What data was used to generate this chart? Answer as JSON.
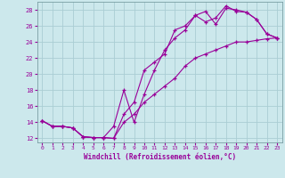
{
  "xlabel": "Windchill (Refroidissement éolien,°C)",
  "bg_color": "#cce8ec",
  "grid_color": "#aacdd4",
  "line_color": "#990099",
  "xlim": [
    -0.5,
    23.5
  ],
  "ylim": [
    11.5,
    29.0
  ],
  "xticks": [
    0,
    1,
    2,
    3,
    4,
    5,
    6,
    7,
    8,
    9,
    10,
    11,
    12,
    13,
    14,
    15,
    16,
    17,
    18,
    19,
    20,
    21,
    22,
    23
  ],
  "yticks": [
    12,
    14,
    16,
    18,
    20,
    22,
    24,
    26,
    28
  ],
  "line1_x": [
    0,
    1,
    2,
    3,
    4,
    5,
    6,
    7,
    8,
    9,
    10,
    11,
    12,
    13,
    14,
    15,
    16,
    17,
    18,
    19,
    20,
    21,
    22,
    23
  ],
  "line1_y": [
    14.2,
    13.5,
    13.5,
    13.3,
    12.2,
    12.1,
    12.1,
    13.5,
    18.0,
    14.0,
    17.5,
    20.5,
    23.0,
    24.5,
    25.5,
    27.3,
    27.8,
    26.2,
    28.2,
    28.0,
    27.7,
    26.8,
    25.0,
    24.5
  ],
  "line2_x": [
    0,
    1,
    2,
    3,
    4,
    5,
    6,
    7,
    8,
    9,
    10,
    11,
    12,
    13,
    14,
    15,
    16,
    17,
    18,
    19,
    20,
    21,
    22,
    23
  ],
  "line2_y": [
    14.2,
    13.5,
    13.5,
    13.3,
    12.2,
    12.1,
    12.1,
    12.0,
    15.0,
    16.5,
    20.5,
    21.5,
    22.5,
    25.5,
    26.0,
    27.3,
    26.5,
    27.0,
    28.5,
    27.8,
    27.7,
    26.8,
    25.0,
    24.5
  ],
  "line3_x": [
    0,
    1,
    2,
    3,
    4,
    5,
    6,
    7,
    8,
    9,
    10,
    11,
    12,
    13,
    14,
    15,
    16,
    17,
    18,
    19,
    20,
    21,
    22,
    23
  ],
  "line3_y": [
    14.2,
    13.5,
    13.5,
    13.3,
    12.2,
    12.1,
    12.1,
    12.0,
    14.0,
    15.0,
    16.5,
    17.5,
    18.5,
    19.5,
    21.0,
    22.0,
    22.5,
    23.0,
    23.5,
    24.0,
    24.0,
    24.2,
    24.4,
    24.5
  ]
}
